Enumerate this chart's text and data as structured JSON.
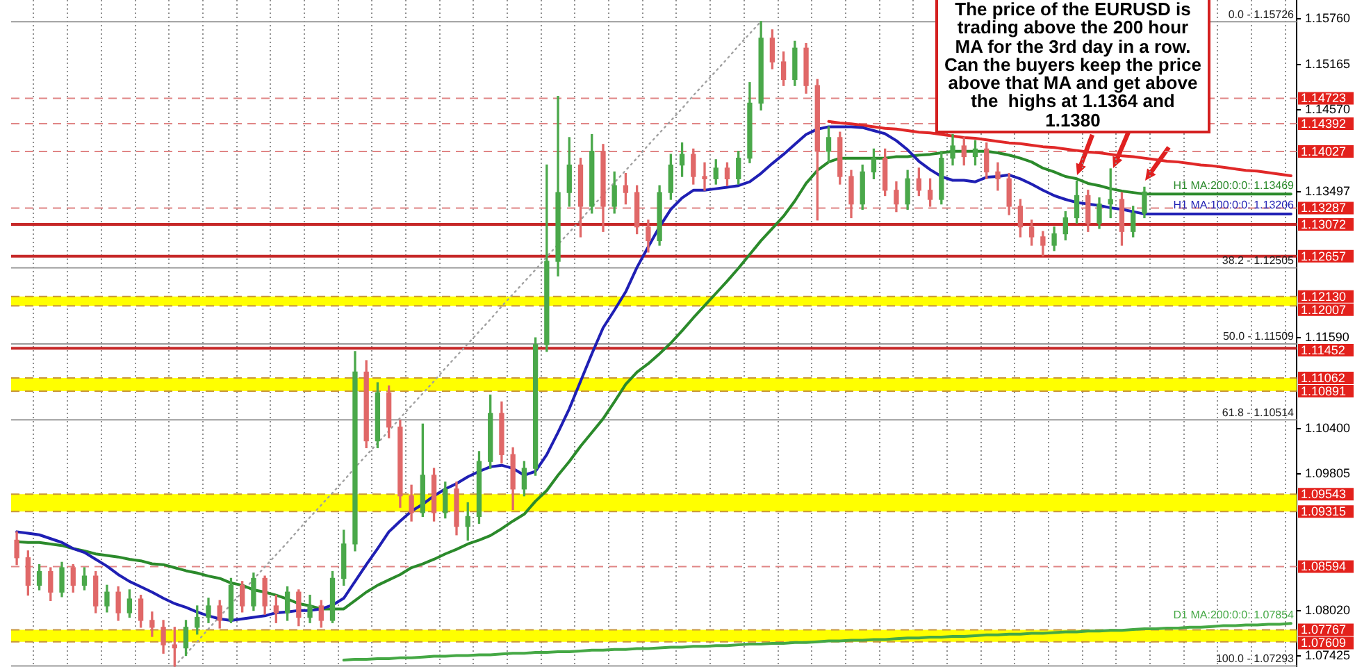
{
  "chart_data": {
    "type": "candlestick",
    "categories": [
      null,
      null,
      null,
      null,
      null,
      null,
      null,
      null,
      null,
      null,
      null,
      null,
      null,
      null,
      null,
      null,
      null,
      null,
      null,
      null,
      null,
      null,
      null,
      null,
      null,
      null,
      null,
      null,
      null,
      null,
      null,
      null,
      null,
      null,
      null,
      null,
      null,
      null,
      null,
      null,
      null,
      null,
      null,
      null,
      null,
      null,
      null,
      null,
      null,
      null,
      null,
      null,
      null,
      null,
      null,
      null,
      null,
      null,
      null,
      null,
      null,
      null,
      null,
      null,
      null,
      null,
      null,
      null,
      null,
      null,
      null,
      null,
      null,
      null,
      null,
      null,
      null,
      null,
      null,
      null,
      null,
      null,
      null,
      null,
      null,
      null,
      null,
      null,
      null,
      null,
      null,
      null,
      null,
      null,
      null,
      null,
      null,
      null,
      null,
      null,
      null,
      null,
      null,
      null,
      null,
      null,
      null,
      null,
      null,
      null,
      null,
      null,
      null,
      null
    ],
    "ohlc": [
      [
        1.0894,
        1.0905,
        1.0862,
        1.0871
      ],
      [
        1.0871,
        1.088,
        1.0822,
        1.0835
      ],
      [
        1.0835,
        1.0862,
        1.0829,
        1.0853
      ],
      [
        1.0853,
        1.0858,
        1.0815,
        1.0826
      ],
      [
        1.0826,
        1.0865,
        1.082,
        1.0858
      ],
      [
        1.0858,
        1.0862,
        1.0826,
        1.0835
      ],
      [
        1.0835,
        1.0858,
        1.0829,
        1.0847
      ],
      [
        1.0847,
        1.0853,
        1.0799,
        1.0808
      ],
      [
        1.0808,
        1.0835,
        1.08,
        1.0826
      ],
      [
        1.0826,
        1.0833,
        1.0789,
        1.0799
      ],
      [
        1.0799,
        1.0829,
        1.0793,
        1.0817
      ],
      [
        1.0817,
        1.0822,
        1.078,
        1.0789
      ],
      [
        1.0789,
        1.08,
        1.0768,
        1.078
      ],
      [
        1.078,
        1.0789,
        1.0746,
        1.0757
      ],
      [
        1.0757,
        1.078,
        1.0729,
        1.0753
      ],
      [
        1.0753,
        1.0789,
        1.0743,
        1.078
      ],
      [
        1.078,
        1.0808,
        1.0771,
        1.0793
      ],
      [
        1.0793,
        1.0818,
        1.0786,
        1.0808
      ],
      [
        1.0808,
        1.0815,
        1.0779,
        1.0789
      ],
      [
        1.0789,
        1.0844,
        1.0786,
        1.0835
      ],
      [
        1.0835,
        1.084,
        1.08,
        1.0808
      ],
      [
        1.0808,
        1.0851,
        1.0802,
        1.0844
      ],
      [
        1.0844,
        1.0847,
        1.0797,
        1.0808
      ],
      [
        1.0808,
        1.0822,
        1.0786,
        1.0799
      ],
      [
        1.0799,
        1.0833,
        1.0789,
        1.0826
      ],
      [
        1.0826,
        1.0829,
        1.0782,
        1.0793
      ],
      [
        1.0793,
        1.0822,
        1.0786,
        1.0808
      ],
      [
        1.0808,
        1.0815,
        1.078,
        1.0789
      ],
      [
        1.0789,
        1.0853,
        1.0786,
        1.0844
      ],
      [
        1.0844,
        1.0907,
        1.0835,
        1.0889
      ],
      [
        1.0889,
        1.1141,
        1.088,
        1.1114
      ],
      [
        1.1114,
        1.1129,
        1.1015,
        1.1024
      ],
      [
        1.1024,
        1.11,
        1.1015,
        1.1087
      ],
      [
        1.1087,
        1.1096,
        1.1028,
        1.1042
      ],
      [
        1.1042,
        1.1051,
        1.0937,
        1.0952
      ],
      [
        1.0952,
        1.0966,
        1.0919,
        1.093
      ],
      [
        1.093,
        1.1046,
        1.0925,
        1.0979
      ],
      [
        1.0979,
        1.0988,
        1.0919,
        1.093
      ],
      [
        1.093,
        1.097,
        1.0923,
        1.0961
      ],
      [
        1.0961,
        1.097,
        1.0901,
        1.0912
      ],
      [
        1.0912,
        1.0943,
        1.0894,
        1.0925
      ],
      [
        1.0925,
        1.101,
        1.0916,
        1.0997
      ],
      [
        1.0997,
        1.1084,
        1.0988,
        1.106
      ],
      [
        1.106,
        1.1075,
        1.0995,
        1.1006
      ],
      [
        1.1006,
        1.1015,
        1.0934,
        1.0961
      ],
      [
        1.0961,
        1.0997,
        1.0952,
        1.0988
      ],
      [
        1.0988,
        1.1159,
        1.0979,
        1.115
      ],
      [
        1.115,
        1.1385,
        1.1141,
        1.1259
      ],
      [
        1.1259,
        1.1475,
        1.124,
        1.1349
      ],
      [
        1.1349,
        1.1421,
        1.1331,
        1.1385
      ],
      [
        1.1385,
        1.1394,
        1.1291,
        1.1331
      ],
      [
        1.1331,
        1.1425,
        1.1322,
        1.1403
      ],
      [
        1.1403,
        1.1412,
        1.1298,
        1.1331
      ],
      [
        1.1331,
        1.1376,
        1.1322,
        1.1358
      ],
      [
        1.1358,
        1.1374,
        1.1334,
        1.1349
      ],
      [
        1.1349,
        1.1358,
        1.1295,
        1.1304
      ],
      [
        1.1304,
        1.1313,
        1.1271,
        1.1286
      ],
      [
        1.1286,
        1.1358,
        1.128,
        1.1349
      ],
      [
        1.1349,
        1.1399,
        1.134,
        1.1385
      ],
      [
        1.1385,
        1.1414,
        1.137,
        1.1399
      ],
      [
        1.1399,
        1.1406,
        1.136,
        1.137
      ],
      [
        1.137,
        1.1388,
        1.1352,
        1.1367
      ],
      [
        1.1367,
        1.1392,
        1.136,
        1.1381
      ],
      [
        1.1381,
        1.1388,
        1.1358,
        1.1367
      ],
      [
        1.1367,
        1.1403,
        1.136,
        1.1394
      ],
      [
        1.1394,
        1.1493,
        1.1388,
        1.1466
      ],
      [
        1.1466,
        1.1573,
        1.1457,
        1.1551
      ],
      [
        1.1551,
        1.1562,
        1.1511,
        1.152
      ],
      [
        1.152,
        1.1533,
        1.1489,
        1.1497
      ],
      [
        1.1497,
        1.1547,
        1.1489,
        1.1538
      ],
      [
        1.1538,
        1.1544,
        1.1479,
        1.1489
      ],
      [
        1.1489,
        1.1497,
        1.1313,
        1.1403
      ],
      [
        1.1403,
        1.1435,
        1.1388,
        1.1421
      ],
      [
        1.1421,
        1.1428,
        1.136,
        1.137
      ],
      [
        1.137,
        1.1378,
        1.1316,
        1.1334
      ],
      [
        1.1334,
        1.1385,
        1.1327,
        1.1376
      ],
      [
        1.1376,
        1.1406,
        1.1367,
        1.1394
      ],
      [
        1.1394,
        1.1406,
        1.1345,
        1.1352
      ],
      [
        1.1352,
        1.1363,
        1.1324,
        1.1334
      ],
      [
        1.1334,
        1.1378,
        1.1327,
        1.1367
      ],
      [
        1.1367,
        1.1381,
        1.1345,
        1.1352
      ],
      [
        1.1352,
        1.1367,
        1.1331,
        1.134
      ],
      [
        1.134,
        1.1403,
        1.1334,
        1.1394
      ],
      [
        1.1394,
        1.1425,
        1.1385,
        1.141
      ],
      [
        1.141,
        1.1421,
        1.1385,
        1.1396
      ],
      [
        1.1396,
        1.1417,
        1.1385,
        1.1406
      ],
      [
        1.1406,
        1.1414,
        1.1367,
        1.1376
      ],
      [
        1.1376,
        1.1388,
        1.1352,
        1.1367
      ],
      [
        1.1367,
        1.1374,
        1.132,
        1.1331
      ],
      [
        1.1331,
        1.134,
        1.1291,
        1.1304
      ],
      [
        1.1304,
        1.1313,
        1.128,
        1.1291
      ],
      [
        1.1291,
        1.1298,
        1.1266,
        1.128
      ],
      [
        1.128,
        1.1304,
        1.1273,
        1.1295
      ],
      [
        1.1295,
        1.1324,
        1.1287,
        1.1316
      ],
      [
        1.1316,
        1.1364,
        1.1309,
        1.1345
      ],
      [
        1.1345,
        1.1352,
        1.1298,
        1.1309
      ],
      [
        1.1309,
        1.1342,
        1.1302,
        1.1334
      ],
      [
        1.1334,
        1.138,
        1.1316,
        1.134
      ],
      [
        1.134,
        1.1349,
        1.128,
        1.1298
      ],
      [
        1.1298,
        1.1331,
        1.1291,
        1.1322
      ],
      [
        1.1322,
        1.1356,
        1.1316,
        1.13497
      ],
      null,
      null,
      null,
      null,
      null,
      null,
      null,
      null,
      null,
      null,
      null,
      null,
      null
    ],
    "colors": [
      "#e06868",
      "#e06868",
      "#4aa84a",
      "#e06868",
      "#4aa84a",
      "#e06868",
      "#4aa84a",
      "#e06868",
      "#4aa84a",
      "#e06868",
      "#4aa84a",
      "#e06868",
      "#e06868",
      "#e06868",
      "#e06868",
      "#4aa84a",
      "#4aa84a",
      "#4aa84a",
      "#e06868",
      "#4aa84a",
      "#e06868",
      "#4aa84a",
      "#e06868",
      "#e06868",
      "#4aa84a",
      "#e06868",
      "#4aa84a",
      "#e06868",
      "#4aa84a",
      "#4aa84a",
      "#4aa84a",
      "#e06868",
      "#4aa84a",
      "#e06868",
      "#e06868",
      "#e06868",
      "#4aa84a",
      "#e06868",
      "#4aa84a",
      "#e06868",
      "#4aa84a",
      "#4aa84a",
      "#4aa84a",
      "#e06868",
      "#e06868",
      "#4aa84a",
      "#4aa84a",
      "#4aa84a",
      "#4aa84a",
      "#4aa84a",
      "#e06868",
      "#4aa84a",
      "#e06868",
      "#4aa84a",
      "#e06868",
      "#e06868",
      "#e06868",
      "#4aa84a",
      "#4aa84a",
      "#4aa84a",
      "#e06868",
      "#e06868",
      "#4aa84a",
      "#e06868",
      "#4aa84a",
      "#4aa84a",
      "#4aa84a",
      "#e06868",
      "#e06868",
      "#4aa84a",
      "#e06868",
      "#e06868",
      "#4aa84a",
      "#e06868",
      "#e06868",
      "#4aa84a",
      "#4aa84a",
      "#e06868",
      "#e06868",
      "#4aa84a",
      "#e06868",
      "#e06868",
      "#4aa84a",
      "#4aa84a",
      "#e06868",
      "#4aa84a",
      "#e06868",
      "#e06868",
      "#e06868",
      "#e06868",
      "#e06868",
      "#e06868",
      "#4aa84a",
      "#4aa84a",
      "#4aa84a",
      "#e06868",
      "#4aa84a",
      "#4aa84a",
      "#e06868",
      "#4aa84a",
      "#4aa84a",
      null,
      null,
      null,
      null,
      null,
      null,
      null,
      null,
      null,
      null,
      null,
      null,
      null
    ],
    "series": [
      {
        "type": "line",
        "name": "H1 MA:100:0:0: 1.13206",
        "color": "#1f1fb4",
        "values": [
          1.0905,
          1.0903,
          1.0901,
          1.0896,
          1.0891,
          1.0883,
          1.0878,
          1.0869,
          1.086,
          1.0849,
          1.084,
          1.0833,
          1.0826,
          1.0818,
          1.0811,
          1.0806,
          1.08,
          1.0795,
          1.0791,
          1.0789,
          1.0791,
          1.0793,
          1.0795,
          1.0799,
          1.08,
          1.0802,
          1.0802,
          1.0804,
          1.0809,
          1.0818,
          1.084,
          1.0862,
          1.0883,
          1.0905,
          1.0919,
          1.0932,
          1.0941,
          1.0952,
          1.0961,
          1.0968,
          1.0977,
          1.0984,
          1.099,
          1.0992,
          1.0988,
          1.0979,
          1.0984,
          1.1006,
          1.1035,
          1.1066,
          1.1102,
          1.1138,
          1.1172,
          1.1195,
          1.1219,
          1.1251,
          1.1278,
          1.1304,
          1.1327,
          1.1342,
          1.1352,
          1.1352,
          1.1354,
          1.1356,
          1.1358,
          1.1363,
          1.1374,
          1.1387,
          1.1399,
          1.1412,
          1.1425,
          1.1432,
          1.1435,
          1.1435,
          1.1435,
          1.1434,
          1.143,
          1.1426,
          1.1417,
          1.1405,
          1.139,
          1.1379,
          1.137,
          1.1365,
          1.1365,
          1.1363,
          1.1369,
          1.137,
          1.1372,
          1.1367,
          1.136,
          1.1352,
          1.1345,
          1.134,
          1.1336,
          1.1334,
          1.1332,
          1.1329,
          1.1327,
          1.1324,
          1.1321,
          1.1321,
          1.1321,
          1.1321,
          1.1321,
          1.1321,
          1.1321,
          1.1321,
          1.1321,
          1.1321,
          1.1321,
          1.1321,
          1.1321,
          1.1321
        ]
      },
      {
        "type": "line",
        "name": "H1 MA:200:0:0: 1.13469",
        "color": "#2b8a2b",
        "values": [
          1.0892,
          1.0891,
          1.0891,
          1.0889,
          1.0887,
          1.0883,
          1.088,
          1.0876,
          1.0874,
          1.0872,
          1.0869,
          1.0867,
          1.0863,
          1.0862,
          1.0858,
          1.0854,
          1.0851,
          1.0847,
          1.0844,
          1.0838,
          1.0835,
          1.0829,
          1.0826,
          1.0822,
          1.0817,
          1.0811,
          1.0808,
          1.0804,
          1.0804,
          1.0804,
          1.0815,
          1.0826,
          1.0835,
          1.0842,
          1.0849,
          1.0858,
          1.0863,
          1.0869,
          1.0876,
          1.0882,
          1.0889,
          1.0894,
          1.09,
          1.0909,
          1.0919,
          1.0928,
          1.0945,
          1.0959,
          1.0979,
          1.0997,
          1.1017,
          1.1035,
          1.1053,
          1.1075,
          1.1098,
          1.1114,
          1.1125,
          1.1138,
          1.1152,
          1.1168,
          1.1185,
          1.1201,
          1.1217,
          1.1233,
          1.125,
          1.1268,
          1.1286,
          1.1302,
          1.1318,
          1.1338,
          1.1361,
          1.1378,
          1.1389,
          1.1394,
          1.1394,
          1.1394,
          1.1394,
          1.1394,
          1.1396,
          1.1396,
          1.1398,
          1.1399,
          1.1401,
          1.1403,
          1.1403,
          1.1403,
          1.1403,
          1.1401,
          1.1398,
          1.1394,
          1.1389,
          1.1381,
          1.1376,
          1.137,
          1.1367,
          1.1361,
          1.1358,
          1.1354,
          1.1351,
          1.1349,
          1.1347,
          1.1347,
          1.1347,
          1.1347,
          1.1347,
          1.1347,
          1.1347,
          1.1347,
          1.1347,
          1.1347,
          1.1347,
          1.1347,
          1.1347,
          1.1347
        ]
      },
      {
        "type": "line",
        "name": "D1 MA:200:0:0: 1.07854",
        "color": "#45a845",
        "values": [
          null,
          null,
          null,
          null,
          null,
          null,
          null,
          null,
          null,
          null,
          null,
          null,
          null,
          null,
          null,
          null,
          null,
          null,
          null,
          null,
          null,
          null,
          null,
          null,
          null,
          null,
          null,
          null,
          null,
          1.0737,
          1.0738,
          1.0738,
          1.0739,
          1.0739,
          1.074,
          1.074,
          1.0741,
          1.0742,
          1.0742,
          1.0743,
          1.0743,
          1.0744,
          1.0744,
          1.0745,
          1.0746,
          1.0746,
          1.0747,
          1.0747,
          1.0748,
          1.0748,
          1.0749,
          1.075,
          1.075,
          1.0751,
          1.0751,
          1.0752,
          1.0752,
          1.0753,
          1.0754,
          1.0754,
          1.0755,
          1.0755,
          1.0756,
          1.0756,
          1.0757,
          1.0758,
          1.0758,
          1.0759,
          1.0759,
          1.076,
          1.076,
          1.0761,
          1.0762,
          1.0762,
          1.0763,
          1.0763,
          1.0764,
          1.0764,
          1.0765,
          1.0766,
          1.0766,
          1.0767,
          1.0767,
          1.0768,
          1.0768,
          1.0769,
          1.077,
          1.077,
          1.0771,
          1.0771,
          1.0772,
          1.0772,
          1.0773,
          1.0774,
          1.0774,
          1.0775,
          1.0775,
          1.0776,
          1.0776,
          1.0777,
          1.0778,
          1.0778,
          1.0779,
          1.0779,
          1.078,
          1.078,
          1.0781,
          1.0782,
          1.0782,
          1.0783,
          1.0783,
          1.0784,
          1.0784,
          1.0785
        ]
      },
      {
        "type": "line",
        "color": "#e02828",
        "values": [
          null,
          null,
          null,
          null,
          null,
          null,
          null,
          null,
          null,
          null,
          null,
          null,
          null,
          null,
          null,
          null,
          null,
          null,
          null,
          null,
          null,
          null,
          null,
          null,
          null,
          null,
          null,
          null,
          null,
          null,
          null,
          null,
          null,
          null,
          null,
          null,
          null,
          null,
          null,
          null,
          null,
          null,
          null,
          null,
          null,
          null,
          null,
          null,
          null,
          null,
          null,
          null,
          null,
          null,
          null,
          null,
          null,
          null,
          null,
          null,
          null,
          null,
          null,
          null,
          null,
          null,
          null,
          null,
          null,
          null,
          null,
          null,
          1.1442,
          1.144,
          1.1439,
          1.1437,
          1.1435,
          1.1433,
          1.1432,
          1.143,
          1.1428,
          1.1427,
          1.1425,
          1.1423,
          1.1421,
          1.142,
          1.1418,
          1.1416,
          1.1414,
          1.1413,
          1.1411,
          1.1409,
          1.1408,
          1.1406,
          1.1404,
          1.1402,
          1.1401,
          1.1399,
          1.1397,
          1.1396,
          1.1394,
          1.1392,
          1.139,
          1.1389,
          1.1387,
          1.1385,
          1.1384,
          1.1382,
          1.138,
          1.1378,
          1.1377,
          1.1375,
          1.1373,
          1.1371
        ]
      },
      {
        "type": "line",
        "color": "#a0a0a0",
        "line_style": "dotted",
        "values": [
          null,
          null,
          null,
          null,
          null,
          null,
          null,
          null,
          null,
          null,
          null,
          null,
          null,
          null,
          1.0729,
          1.0745,
          1.0761,
          1.0778,
          1.0794,
          1.081,
          1.0826,
          1.0843,
          1.0859,
          1.0875,
          1.0891,
          1.0908,
          1.0924,
          1.094,
          1.0956,
          1.0972,
          1.0989,
          1.1005,
          1.1021,
          1.1037,
          1.1054,
          1.107,
          1.1086,
          1.1102,
          1.1119,
          1.1135,
          1.1151,
          1.1167,
          1.1183,
          1.12,
          1.1216,
          1.1232,
          1.1248,
          1.1265,
          1.1281,
          1.1297,
          1.1313,
          1.133,
          1.1346,
          1.1362,
          1.1378,
          1.1394,
          1.1411,
          1.1427,
          1.1443,
          1.1459,
          1.1476,
          1.1492,
          1.1508,
          1.1524,
          1.1541,
          1.1557,
          1.1573,
          null,
          null,
          null,
          null,
          null,
          null,
          null,
          null,
          null,
          null,
          null,
          null,
          null,
          null,
          null,
          null,
          null,
          null,
          null,
          null,
          null,
          null,
          null,
          null,
          null,
          null,
          null,
          null,
          null,
          null,
          null,
          null,
          null,
          null,
          null,
          null,
          null,
          null,
          null,
          null,
          null,
          null,
          null,
          null,
          null,
          null,
          null
        ]
      }
    ],
    "ylim": [
      1.0728,
      1.1601
    ],
    "yticks": [
      {
        "value": 1.1576,
        "label": "1.15760"
      },
      1.15165,
      {
        "value": 1.1457,
        "label": "1.14570"
      },
      1.13497,
      {
        "value": 1.1159,
        "label": "1.11590"
      },
      {
        "value": 1.104,
        "label": "1.10400"
      },
      1.09805,
      {
        "value": 1.0802,
        "label": "1.08020"
      },
      1.07425
    ],
    "ref_lines": [
      {
        "axis": "y",
        "value": 1.14723,
        "label": "1.14723",
        "color": "#e08585",
        "line_style": "dashed"
      },
      {
        "axis": "y",
        "value": 1.14392,
        "label": "1.14392",
        "color": "#e08585",
        "line_style": "dashed"
      },
      {
        "axis": "y",
        "value": 1.14027,
        "label": "1.14027",
        "color": "#e08585",
        "line_style": "dashed"
      },
      {
        "axis": "y",
        "value": 1.13287,
        "label": "1.13287",
        "color": "#e08585",
        "line_style": "dashed"
      },
      {
        "axis": "y",
        "value": 1.13072,
        "label": "1.13072",
        "color": "#c62828",
        "line_style": "solid"
      },
      {
        "axis": "y",
        "value": 1.12657,
        "label": "1.12657",
        "color": "#c62828",
        "line_style": "solid"
      },
      {
        "axis": "y",
        "value": 1.1213,
        "label": "1.12130",
        "color": "#c8963c",
        "line_style": "dashed"
      },
      {
        "axis": "y",
        "value": 1.12007,
        "label": "1.12007",
        "color": "#c8963c",
        "line_style": "dashed"
      },
      {
        "axis": "y",
        "value": 1.11452,
        "label": "1.11452",
        "color": "#c62828",
        "line_style": "solid"
      },
      {
        "axis": "y",
        "value": 1.11062,
        "label": "1.11062",
        "color": "#c8963c",
        "line_style": "dashed"
      },
      {
        "axis": "y",
        "value": 1.10891,
        "label": "1.10891",
        "color": "#c8963c",
        "line_style": "dashed"
      },
      {
        "axis": "y",
        "value": 1.09543,
        "label": "1.09543",
        "color": "#c8963c",
        "line_style": "dashed"
      },
      {
        "axis": "y",
        "value": 1.09315,
        "label": "1.09315",
        "color": "#c8963c",
        "line_style": "dashed"
      },
      {
        "axis": "y",
        "value": 1.08594,
        "label": "1.08594",
        "color": "#e08585",
        "line_style": "dashed"
      },
      {
        "axis": "y",
        "value": 1.07767,
        "label": "1.07767",
        "color": "#c8963c",
        "line_style": "dashed"
      },
      {
        "axis": "y",
        "value": 1.07609,
        "label": "1.07609",
        "color": "#c8963c",
        "line_style": "dashed"
      },
      {
        "axis": "y",
        "value": 1.15726,
        "color": "#9a9a9a"
      },
      {
        "axis": "y",
        "value": 1.12505,
        "color": "#9a9a9a"
      },
      {
        "axis": "y",
        "value": 1.11509,
        "color": "#9a9a9a"
      },
      {
        "axis": "y",
        "value": 1.10514,
        "color": "#9a9a9a"
      },
      {
        "axis": "y",
        "value": 1.07293,
        "color": "#9a9a9a"
      }
    ],
    "bands": [
      {
        "axis": "y",
        "from": 1.12007,
        "to": 1.1213,
        "color": "#ffff00"
      },
      {
        "axis": "y",
        "from": 1.10891,
        "to": 1.11062,
        "color": "#ffff00"
      },
      {
        "axis": "y",
        "from": 1.09315,
        "to": 1.09543,
        "color": "#ffff00"
      },
      {
        "axis": "y",
        "from": 1.07609,
        "to": 1.07767,
        "color": "#ffff00"
      }
    ],
    "annotations": [
      "The price of the EURUSD is trading above the 200 hour MA for the 3rd day in a row. Can the buyers keep the price above that MA and get above the  highs at 1.1364 and 1.1380",
      {
        "text": "0.0 - 1.15726",
        "y": 1.15726
      },
      {
        "text": "38.2 - 1.12505",
        "y": 1.12505
      },
      {
        "text": "50.0 - 1.11509",
        "y": 1.11509
      },
      {
        "text": "61.8 - 1.10514",
        "y": 1.10514
      },
      {
        "text": "100.0 - 1.07293",
        "y": 1.07293
      }
    ],
    "grid": "x",
    "legend": false,
    "marker": "none",
    "tick_labels": "y"
  }
}
